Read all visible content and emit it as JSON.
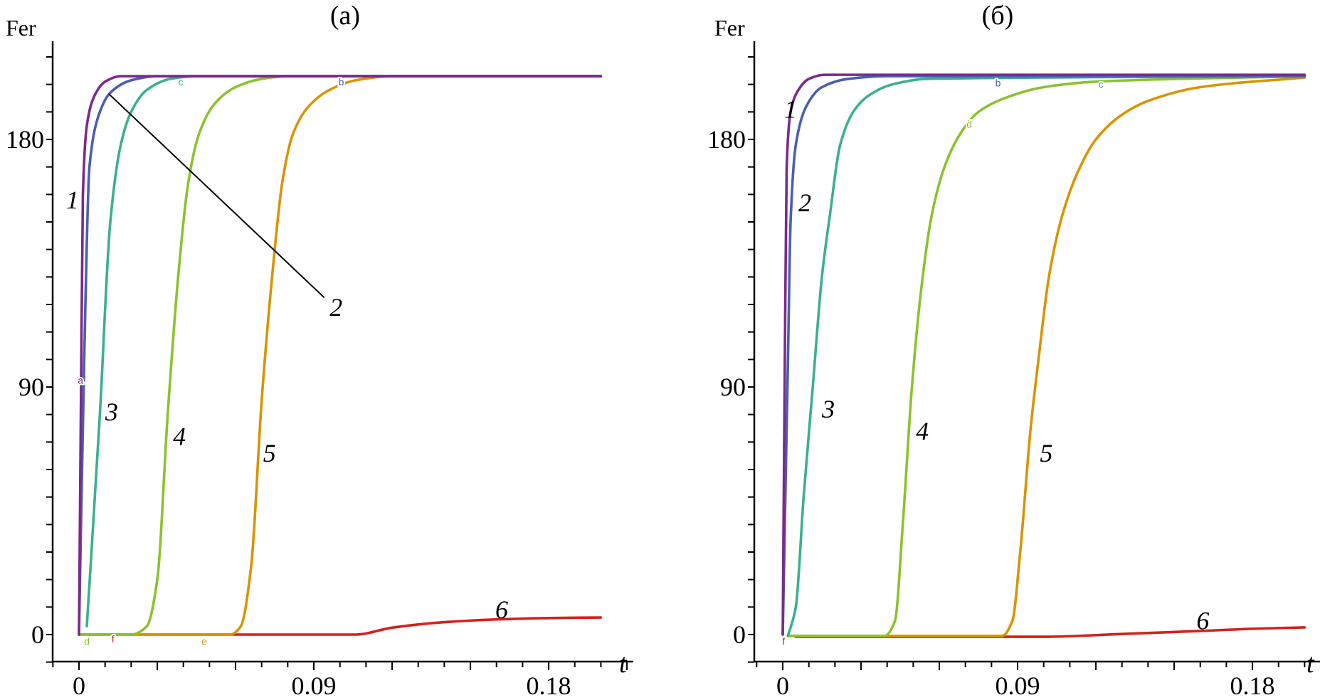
{
  "chart_data": [
    {
      "type": "line",
      "title": "(a)",
      "ylabel": "Fer",
      "xlabel": "t",
      "xticks": [
        "0",
        "0.09",
        "0.18"
      ],
      "yticks": [
        "0",
        "90",
        "180"
      ],
      "xlim": [
        -0.01,
        0.215
      ],
      "ylim": [
        -10,
        215
      ],
      "series": [
        {
          "name": "1",
          "marker": "a",
          "color": "#7b2a8c",
          "points": [
            [
              0,
              0
            ],
            [
              0.0008,
              90
            ],
            [
              0.0015,
              160
            ],
            [
              0.003,
              185
            ],
            [
              0.006,
              196
            ],
            [
              0.01,
              201
            ],
            [
              0.016,
              203
            ],
            [
              0.2,
              203
            ]
          ]
        },
        {
          "name": "2",
          "marker": "b",
          "color": "#4a5fb0",
          "points": [
            [
              0,
              0
            ],
            [
              0.002,
              100
            ],
            [
              0.004,
              170
            ],
            [
              0.008,
              190
            ],
            [
              0.012,
              197
            ],
            [
              0.02,
              201.5
            ],
            [
              0.03,
              203
            ],
            [
              0.2,
              203
            ]
          ]
        },
        {
          "name": "3",
          "marker": "c",
          "color": "#3bb08f",
          "points": [
            [
              0.003,
              3
            ],
            [
              0.008,
              80
            ],
            [
              0.012,
              150
            ],
            [
              0.016,
              178
            ],
            [
              0.02,
              190
            ],
            [
              0.026,
              198
            ],
            [
              0.035,
              202
            ],
            [
              0.045,
              203
            ],
            [
              0.2,
              203
            ]
          ]
        },
        {
          "name": "4",
          "marker": "d",
          "color": "#8cc22e",
          "points": [
            [
              0,
              0
            ],
            [
              0.02,
              0
            ],
            [
              0.026,
              3
            ],
            [
              0.03,
              20
            ],
            [
              0.034,
              80
            ],
            [
              0.038,
              130
            ],
            [
              0.042,
              165
            ],
            [
              0.046,
              182
            ],
            [
              0.052,
              193
            ],
            [
              0.06,
              199
            ],
            [
              0.07,
              202
            ],
            [
              0.08,
              203
            ],
            [
              0.2,
              203
            ]
          ]
        },
        {
          "name": "5",
          "marker": "e",
          "color": "#d99400",
          "points": [
            [
              0,
              0
            ],
            [
              0.058,
              0
            ],
            [
              0.062,
              3
            ],
            [
              0.066,
              25
            ],
            [
              0.07,
              85
            ],
            [
              0.074,
              130
            ],
            [
              0.078,
              165
            ],
            [
              0.082,
              182
            ],
            [
              0.088,
              192
            ],
            [
              0.096,
              198
            ],
            [
              0.106,
              201.5
            ],
            [
              0.12,
              203
            ],
            [
              0.2,
              203
            ]
          ]
        },
        {
          "name": "6",
          "marker": "f",
          "color": "#d6201a",
          "points": [
            [
              0,
              0
            ],
            [
              0.106,
              0
            ],
            [
              0.12,
              2.5
            ],
            [
              0.14,
              4.5
            ],
            [
              0.16,
              5.5
            ],
            [
              0.18,
              6
            ],
            [
              0.2,
              6.2
            ]
          ]
        }
      ],
      "curve_labels": [
        {
          "text": "1",
          "t": -0.0025,
          "f": 158
        },
        {
          "text": "2",
          "t": 0.0985,
          "f": 119
        },
        {
          "text": "3",
          "t": 0.0125,
          "f": 81
        },
        {
          "text": "4",
          "t": 0.0385,
          "f": 72
        },
        {
          "text": "5",
          "t": 0.073,
          "f": 66
        },
        {
          "text": "6",
          "t": 0.162,
          "f": 9
        }
      ],
      "leader_line": {
        "from": [
          0.0115,
          196.5
        ],
        "to": [
          0.094,
          122.5
        ]
      },
      "marker_labels": [
        {
          "text": "a",
          "t": 0.0006,
          "f": 92.5,
          "color": "#7b2a8c"
        },
        {
          "text": "b",
          "t": 0.1005,
          "f": 201,
          "color": "#4a5fb0"
        },
        {
          "text": "c",
          "t": 0.039,
          "f": 201,
          "color": "#3bb08f"
        },
        {
          "text": "d",
          "t": 0.003,
          "f": -2.5,
          "color": "#8cc22e"
        },
        {
          "text": "e",
          "t": 0.048,
          "f": -2.5,
          "color": "#d99400"
        },
        {
          "text": "f",
          "t": 0.013,
          "f": -1.5,
          "color": "#d6201a"
        }
      ]
    },
    {
      "type": "line",
      "title": "(б)",
      "ylabel": "Fer",
      "xlabel": "t",
      "xticks": [
        "0",
        "0.09",
        "0.18"
      ],
      "yticks": [
        "0",
        "90",
        "180"
      ],
      "xlim": [
        -0.01,
        0.215
      ],
      "ylim": [
        -10,
        215
      ],
      "series": [
        {
          "name": "1",
          "marker": "a",
          "color": "#7b2a8c",
          "points": [
            [
              0,
              0
            ],
            [
              0.0008,
              100
            ],
            [
              0.0015,
              170
            ],
            [
              0.003,
              190
            ],
            [
              0.006,
              198
            ],
            [
              0.01,
              202
            ],
            [
              0.016,
              203.5
            ],
            [
              0.2,
              203.5
            ]
          ]
        },
        {
          "name": "2",
          "marker": "b",
          "color": "#4a5fb0",
          "points": [
            [
              0,
              0
            ],
            [
              0.002,
              100
            ],
            [
              0.003,
              150
            ],
            [
              0.005,
              178
            ],
            [
              0.009,
              192
            ],
            [
              0.015,
              199
            ],
            [
              0.025,
              202
            ],
            [
              0.04,
              203
            ],
            [
              0.2,
              203
            ]
          ]
        },
        {
          "name": "3",
          "marker": "c",
          "color": "#3bb08f",
          "points": [
            [
              0.002,
              -0.5
            ],
            [
              0.005,
              10
            ],
            [
              0.008,
              50
            ],
            [
              0.0115,
              90
            ],
            [
              0.015,
              130
            ],
            [
              0.018,
              152
            ],
            [
              0.022,
              178
            ],
            [
              0.027,
              190
            ],
            [
              0.033,
              196
            ],
            [
              0.042,
              200
            ],
            [
              0.055,
              202
            ],
            [
              0.2,
              203
            ]
          ]
        },
        {
          "name": "4",
          "marker": "d",
          "color": "#8cc22e",
          "points": [
            [
              0.002,
              -0.5
            ],
            [
              0.039,
              -0.5
            ],
            [
              0.043,
              5
            ],
            [
              0.046,
              40
            ],
            [
              0.0495,
              90
            ],
            [
              0.053,
              125
            ],
            [
              0.057,
              152
            ],
            [
              0.062,
              170
            ],
            [
              0.068,
              182
            ],
            [
              0.075,
              190
            ],
            [
              0.085,
              195
            ],
            [
              0.1,
              199
            ],
            [
              0.12,
              201
            ],
            [
              0.2,
              203
            ]
          ]
        },
        {
          "name": "5",
          "marker": "e",
          "color": "#d99400",
          "points": [
            [
              0.002,
              -0.5
            ],
            [
              0.084,
              -0.5
            ],
            [
              0.088,
              5
            ],
            [
              0.091,
              30
            ],
            [
              0.095,
              75
            ],
            [
              0.098,
              100
            ],
            [
              0.102,
              130
            ],
            [
              0.107,
              152
            ],
            [
              0.113,
              168
            ],
            [
              0.12,
              180
            ],
            [
              0.13,
              189
            ],
            [
              0.14,
              194
            ],
            [
              0.16,
              199
            ],
            [
              0.2,
              202.5
            ]
          ]
        },
        {
          "name": "6",
          "marker": "f",
          "color": "#d6201a",
          "points": [
            [
              0.005,
              -0.8
            ],
            [
              0.1,
              -0.8
            ],
            [
              0.13,
              0.2
            ],
            [
              0.16,
              1.3
            ],
            [
              0.18,
              2.1
            ],
            [
              0.2,
              2.6
            ]
          ]
        }
      ],
      "curve_labels": [
        {
          "text": "1",
          "t": 0.003,
          "f": 191
        },
        {
          "text": "2",
          "t": 0.0085,
          "f": 157
        },
        {
          "text": "3",
          "t": 0.0175,
          "f": 82
        },
        {
          "text": "4",
          "t": 0.0535,
          "f": 74
        },
        {
          "text": "5",
          "t": 0.101,
          "f": 66
        },
        {
          "text": "6",
          "t": 0.161,
          "f": 5
        }
      ],
      "marker_labels": [
        {
          "text": "b",
          "t": 0.0825,
          "f": 200.5,
          "color": "#4a5fb0"
        },
        {
          "text": "c",
          "t": 0.122,
          "f": 200,
          "color": "#3bb08f"
        },
        {
          "text": "d",
          "t": 0.0715,
          "f": 185.5,
          "color": "#8cc22e"
        },
        {
          "text": "f",
          "t": 0.0003,
          "f": -2.5,
          "color": "#d6201a"
        }
      ]
    }
  ]
}
